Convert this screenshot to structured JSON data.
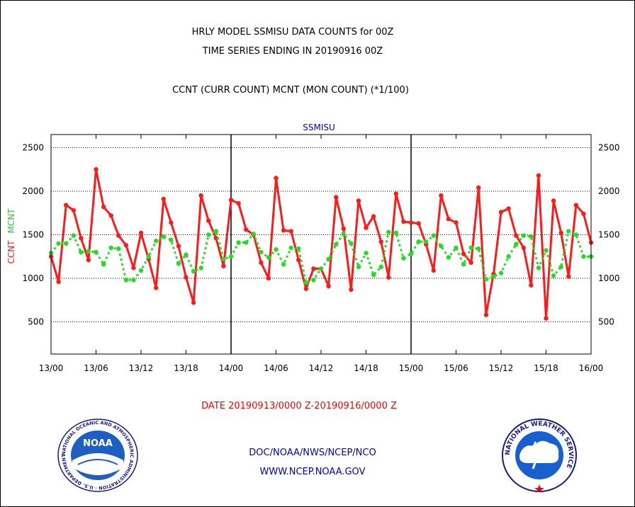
{
  "header": {
    "title_line1": "HRLY MODEL SSMISU DATA COUNTS for 00Z",
    "title_line2": "TIME SERIES ENDING IN 20190916 00Z",
    "subtitle": "CCNT (CURR COUNT) MCNT (MON COUNT) (*1/100)"
  },
  "footer": {
    "date_range": "DATE 20190913/0000 Z-20190916/0000 Z",
    "org_line": "DOC/NOAA/NWS/NCEP/NCO",
    "url_line": "WWW.NCEP.NOAA.GOV"
  },
  "logos": {
    "noaa": {
      "name": "NOAA",
      "ring_text": "NATIONAL OCEANIC AND ATMOSPHERIC ADMINISTRATION · U.S. DEPARTMENT OF COMMERCE"
    },
    "nws": {
      "ring_text": "NATIONAL WEATHER SERVICE"
    }
  },
  "colors": {
    "ccnt": "#ff1a1a",
    "mcnt": "#22dd22",
    "title_blue": "#0000cc",
    "date_red": "#ff0000"
  },
  "chart_data": {
    "type": "line",
    "title": "SSMISU",
    "ylabel_left_red": "CCNT",
    "ylabel_left_green": "MCNT",
    "ylim": [
      130,
      2650
    ],
    "xlim": [
      0,
      72
    ],
    "yticks": [
      500,
      1000,
      1500,
      2000,
      2500
    ],
    "ytick_labels": [
      "500",
      "1000",
      "1500",
      "2000",
      "2500"
    ],
    "xticks": [
      0,
      6,
      12,
      18,
      24,
      30,
      36,
      42,
      48,
      54,
      60,
      66,
      72
    ],
    "xtick_labels": [
      "13/00",
      "13/06",
      "13/12",
      "13/18",
      "14/00",
      "14/06",
      "14/12",
      "14/18",
      "15/00",
      "15/06",
      "15/12",
      "15/18",
      "16/00"
    ],
    "day_boundaries": [
      24,
      48
    ],
    "grid": true,
    "series": [
      {
        "name": "CCNT",
        "color": "#ff1a1a",
        "x": [
          0,
          1,
          2,
          3,
          4,
          5,
          6,
          7,
          8,
          9,
          10,
          11,
          12,
          13,
          14,
          15,
          16,
          17,
          18,
          19,
          20,
          21,
          22,
          23,
          24,
          25,
          26,
          27,
          28,
          29,
          30,
          31,
          32,
          33,
          34,
          35,
          36,
          37,
          38,
          39,
          40,
          41,
          42,
          43,
          44,
          45,
          46,
          47,
          48,
          49,
          50,
          51,
          52,
          53,
          54,
          55,
          56,
          57,
          58,
          59,
          60,
          61,
          62,
          63,
          64,
          65,
          66,
          67,
          68,
          69,
          70,
          71,
          72
        ],
        "values": [
          1250,
          960,
          1840,
          1780,
          1460,
          1210,
          2250,
          1820,
          1720,
          1490,
          1380,
          1120,
          1520,
          1220,
          890,
          1910,
          1640,
          1370,
          1010,
          720,
          1950,
          1660,
          1460,
          1140,
          1900,
          1860,
          1560,
          1500,
          1180,
          1000,
          2150,
          1550,
          1540,
          1210,
          880,
          1110,
          1110,
          910,
          1930,
          1570,
          870,
          1890,
          1580,
          1710,
          1420,
          1010,
          1970,
          1650,
          1640,
          1630,
          1390,
          1090,
          1950,
          1680,
          1640,
          1280,
          1180,
          2040,
          580,
          1050,
          1760,
          1800,
          1490,
          1350,
          920,
          2180,
          540,
          1890,
          1520,
          1020,
          1840,
          1740,
          1410
        ]
      },
      {
        "name": "MCNT",
        "color": "#22dd22",
        "x": [
          0,
          1,
          2,
          3,
          4,
          5,
          6,
          7,
          8,
          9,
          10,
          11,
          12,
          13,
          14,
          15,
          16,
          17,
          18,
          19,
          20,
          21,
          22,
          23,
          24,
          25,
          26,
          27,
          28,
          29,
          30,
          31,
          32,
          33,
          34,
          35,
          36,
          37,
          38,
          39,
          40,
          41,
          42,
          43,
          44,
          45,
          46,
          47,
          48,
          49,
          50,
          51,
          52,
          53,
          54,
          55,
          56,
          57,
          58,
          59,
          60,
          61,
          62,
          63,
          64,
          65,
          66,
          67,
          68,
          69,
          70,
          71,
          72
        ],
        "values": [
          1290,
          1400,
          1400,
          1490,
          1300,
          1310,
          1300,
          1160,
          1350,
          1340,
          980,
          980,
          1090,
          1250,
          1430,
          1480,
          1440,
          1170,
          1270,
          1080,
          1120,
          1500,
          1540,
          1220,
          1250,
          1410,
          1410,
          1510,
          1300,
          1240,
          1330,
          1160,
          1350,
          1340,
          950,
          980,
          1110,
          1220,
          1390,
          1510,
          1400,
          1130,
          1290,
          1040,
          1130,
          1530,
          1520,
          1230,
          1280,
          1420,
          1420,
          1490,
          1370,
          1240,
          1350,
          1160,
          1350,
          1340,
          990,
          1020,
          1060,
          1250,
          1390,
          1490,
          1480,
          1120,
          1320,
          1030,
          1130,
          1540,
          1500,
          1250,
          1250
        ]
      }
    ]
  }
}
